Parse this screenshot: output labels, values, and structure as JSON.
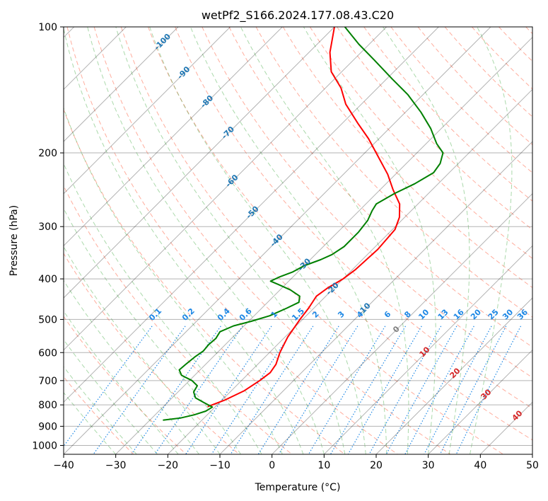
{
  "colors": {
    "temperature": "#ff0000",
    "dewpoint": "#008000",
    "isotherm_minor": "#000000",
    "isobar": "#808080",
    "dry_adiabat": "#ff6a4d",
    "moist_adiabat": "#2ca02c",
    "mixing_ratio": "#1e88e5",
    "isotherm_label": "#1f77b4",
    "theta_label": "#d62728",
    "zero_isotherm_label": "#808080"
  },
  "chart_data": {
    "type": "line",
    "title": "wetPf2_S166.2024.177.08.43.C20",
    "xlabel": "Temperature (°C)",
    "ylabel": "Pressure (hPa)",
    "xlim": [
      -40,
      50
    ],
    "ylim": [
      1050,
      100
    ],
    "y_scale": "log",
    "skew": true,
    "grid": true,
    "x_ticks": [
      -40,
      -30,
      -20,
      -10,
      0,
      10,
      20,
      30,
      40,
      50
    ],
    "x_tick_labels": [
      "−40",
      "−30",
      "−20",
      "−10",
      "0",
      "10",
      "20",
      "30",
      "40",
      "50"
    ],
    "y_ticks": [
      100,
      200,
      300,
      400,
      500,
      600,
      700,
      800,
      900,
      1000
    ],
    "y_tick_labels": [
      "100",
      "200",
      "300",
      "400",
      "500",
      "600",
      "700",
      "800",
      "900",
      "1000"
    ],
    "series": [
      {
        "name": "Temperature",
        "color": "red",
        "points": [
          [
            -21.5,
            808
          ],
          [
            -19.5,
            780
          ],
          [
            -17.5,
            740
          ],
          [
            -16.5,
            700
          ],
          [
            -16.0,
            670
          ],
          [
            -16.5,
            640
          ],
          [
            -18.0,
            600
          ],
          [
            -19.5,
            550
          ],
          [
            -20.5,
            500
          ],
          [
            -21.0,
            470
          ],
          [
            -21.8,
            440
          ],
          [
            -21.2,
            420
          ],
          [
            -20.0,
            400
          ],
          [
            -19.4,
            380
          ],
          [
            -19.0,
            340
          ],
          [
            -19.5,
            305
          ],
          [
            -21.0,
            285
          ],
          [
            -23.5,
            265
          ],
          [
            -27.5,
            245
          ],
          [
            -31.5,
            225
          ],
          [
            -36.5,
            205
          ],
          [
            -42.0,
            185
          ],
          [
            -47.0,
            170
          ],
          [
            -53.0,
            153
          ],
          [
            -57.0,
            140
          ],
          [
            -62.0,
            128
          ],
          [
            -66.0,
            115
          ],
          [
            -70.0,
            100
          ]
        ]
      },
      {
        "name": "Dewpoint",
        "color": "green",
        "points": [
          [
            -27.5,
            870
          ],
          [
            -24.5,
            860
          ],
          [
            -22.5,
            845
          ],
          [
            -21.0,
            828
          ],
          [
            -20.5,
            810
          ],
          [
            -23.0,
            790
          ],
          [
            -25.5,
            770
          ],
          [
            -27.0,
            745
          ],
          [
            -27.5,
            720
          ],
          [
            -29.5,
            700
          ],
          [
            -32.5,
            680
          ],
          [
            -34.0,
            660
          ],
          [
            -33.8,
            640
          ],
          [
            -33.5,
            615
          ],
          [
            -33.0,
            595
          ],
          [
            -33.2,
            575
          ],
          [
            -33.0,
            555
          ],
          [
            -33.5,
            535
          ],
          [
            -32.0,
            518
          ],
          [
            -29.5,
            505
          ],
          [
            -27.0,
            490
          ],
          [
            -25.2,
            470
          ],
          [
            -24.0,
            455
          ],
          [
            -25.0,
            440
          ],
          [
            -28.0,
            425
          ],
          [
            -31.5,
            412
          ],
          [
            -33.5,
            405
          ],
          [
            -32.5,
            395
          ],
          [
            -31.0,
            385
          ],
          [
            -30.0,
            372
          ],
          [
            -28.0,
            360
          ],
          [
            -26.8,
            350
          ],
          [
            -26.0,
            335
          ],
          [
            -26.0,
            310
          ],
          [
            -26.5,
            290
          ],
          [
            -27.5,
            275
          ],
          [
            -28.0,
            265
          ],
          [
            -26.5,
            250
          ],
          [
            -24.5,
            237
          ],
          [
            -23.0,
            223
          ],
          [
            -23.5,
            212
          ],
          [
            -25.0,
            200
          ],
          [
            -28.0,
            190
          ],
          [
            -32.0,
            175
          ],
          [
            -37.0,
            160
          ],
          [
            -43.0,
            145
          ],
          [
            -49.0,
            133
          ],
          [
            -56.0,
            120
          ],
          [
            -62.0,
            110
          ],
          [
            -68.0,
            100
          ]
        ]
      }
    ],
    "isotherm_labels": [
      "-100",
      "-90",
      "-80",
      "-70",
      "-60",
      "-50",
      "-40",
      "-30",
      "-20",
      "-10"
    ],
    "mixing_ratio_labels": [
      "0.1",
      "0.2",
      "0.4",
      "0.6",
      "1",
      "1.5",
      "2",
      "3",
      "4",
      "6",
      "8",
      "10",
      "13",
      "16",
      "20",
      "25",
      "30",
      "36"
    ],
    "zero_isotherm_label": "0",
    "theta_labels": [
      "10",
      "20",
      "30",
      "40"
    ]
  }
}
